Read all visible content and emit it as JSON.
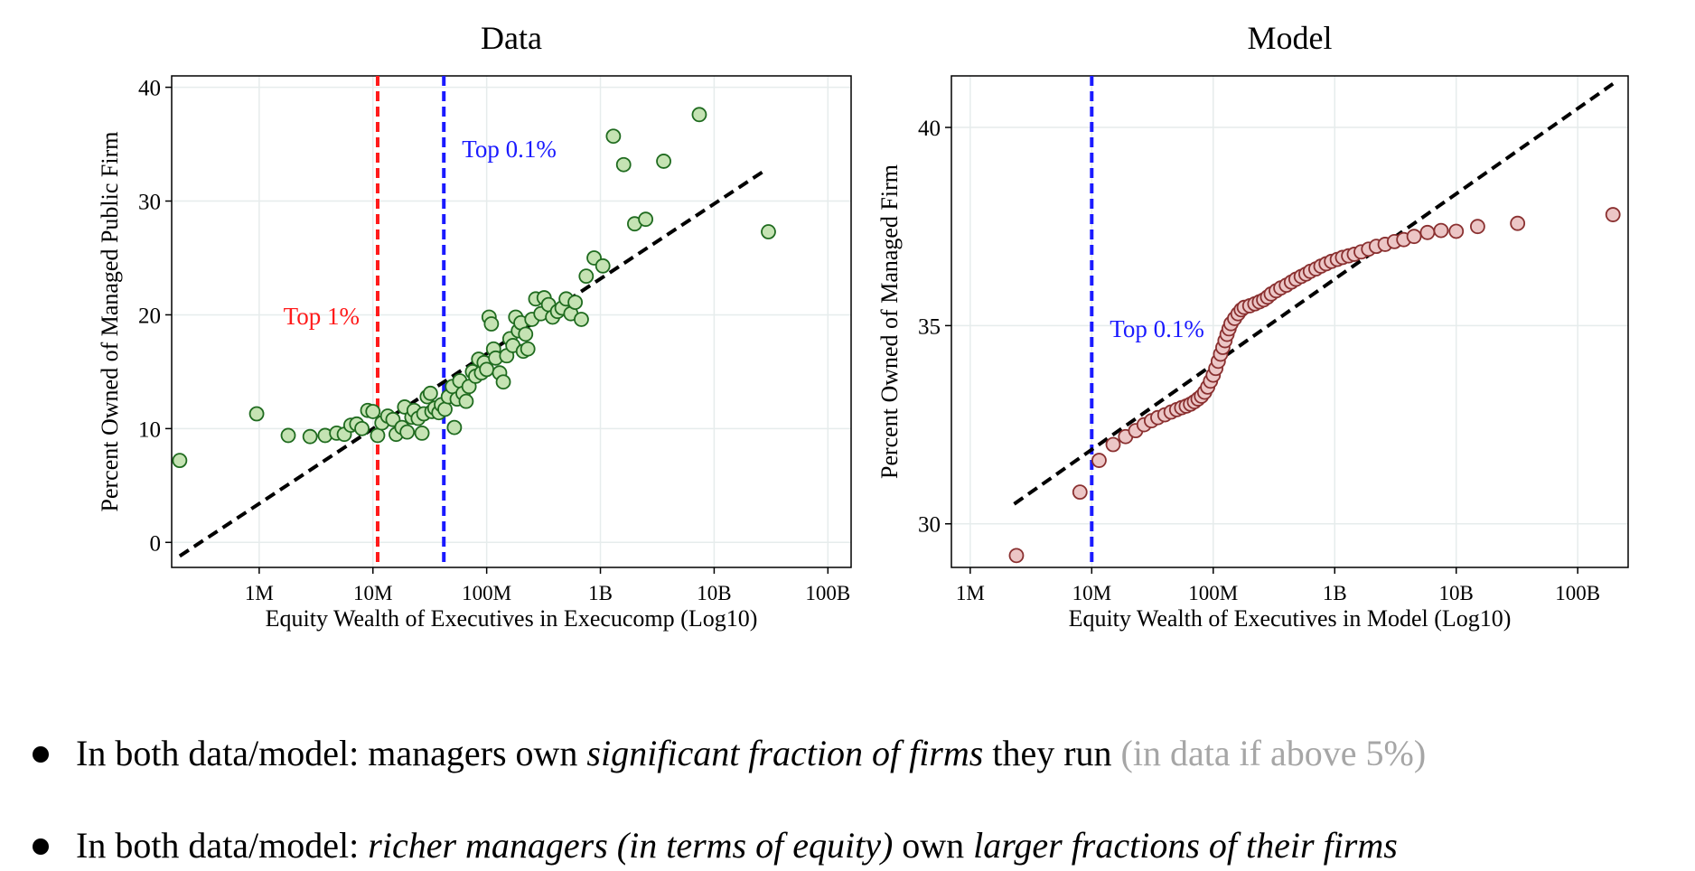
{
  "chart_data": [
    {
      "type": "scatter",
      "title": "Data",
      "xlabel": "Equity Wealth of Executives in Execucomp (Log10)",
      "ylabel": "Percent Owned of Managed Public Firm",
      "x_scale": "log10",
      "xlim": [
        170000.0,
        160000000000.0
      ],
      "ylim": [
        -2.2,
        41
      ],
      "xticks": [
        1000000,
        10000000,
        100000000,
        1000000000,
        10000000000,
        100000000000
      ],
      "xtick_labels": [
        "1M",
        "10M",
        "100M",
        "1B",
        "10B",
        "100B"
      ],
      "yticks": [
        0,
        10,
        20,
        30,
        40
      ],
      "ytick_labels": [
        "0",
        "10",
        "20",
        "30",
        "40"
      ],
      "grid": true,
      "marker_fill": "#c5e3b3",
      "marker_stroke": "#1f6b1f",
      "points": [
        [
          200000.0,
          7.2
        ],
        [
          950000.0,
          11.3
        ],
        [
          1800000.0,
          9.4
        ],
        [
          2800000.0,
          9.3
        ],
        [
          3800000.0,
          9.4
        ],
        [
          4800000.0,
          9.6
        ],
        [
          5600000.0,
          9.5
        ],
        [
          6400000.0,
          10.3
        ],
        [
          7200000.0,
          10.4
        ],
        [
          8000000.0,
          10.0
        ],
        [
          9000000.0,
          11.6
        ],
        [
          10000000.0,
          11.5
        ],
        [
          11000000.0,
          9.4
        ],
        [
          12000000.0,
          10.5
        ],
        [
          13500000.0,
          11.1
        ],
        [
          15000000.0,
          10.8
        ],
        [
          16000000.0,
          9.5
        ],
        [
          18000000.0,
          10.1
        ],
        [
          19000000.0,
          11.9
        ],
        [
          20000000.0,
          9.7
        ],
        [
          22000000.0,
          11.0
        ],
        [
          23000000.0,
          11.6
        ],
        [
          25000000.0,
          10.9
        ],
        [
          27000000.0,
          9.6
        ],
        [
          28000000.0,
          11.3
        ],
        [
          30000000.0,
          12.8
        ],
        [
          32000000.0,
          13.1
        ],
        [
          33000000.0,
          11.5
        ],
        [
          35000000.0,
          11.8
        ],
        [
          38000000.0,
          11.4
        ],
        [
          40000000.0,
          12.1
        ],
        [
          43000000.0,
          11.7
        ],
        [
          46000000.0,
          12.8
        ],
        [
          50000000.0,
          13.7
        ],
        [
          52000000.0,
          10.1
        ],
        [
          55000000.0,
          12.6
        ],
        [
          58000000.0,
          14.2
        ],
        [
          62000000.0,
          13.1
        ],
        [
          66000000.0,
          12.4
        ],
        [
          70000000.0,
          13.7
        ],
        [
          75000000.0,
          15.0
        ],
        [
          80000000.0,
          14.6
        ],
        [
          85000000.0,
          16.1
        ],
        [
          90000000.0,
          14.9
        ],
        [
          95000000.0,
          15.8
        ],
        [
          100000000.0,
          15.2
        ],
        [
          105000000.0,
          19.8
        ],
        [
          110000000.0,
          19.2
        ],
        [
          115000000.0,
          17.0
        ],
        [
          120000000.0,
          16.2
        ],
        [
          130000000.0,
          14.9
        ],
        [
          140000000.0,
          14.1
        ],
        [
          150000000.0,
          16.4
        ],
        [
          160000000.0,
          17.9
        ],
        [
          170000000.0,
          17.3
        ],
        [
          180000000.0,
          19.8
        ],
        [
          190000000.0,
          18.6
        ],
        [
          200000000.0,
          19.3
        ],
        [
          210000000.0,
          16.8
        ],
        [
          220000000.0,
          18.3
        ],
        [
          230000000.0,
          17.0
        ],
        [
          250000000.0,
          19.6
        ],
        [
          270000000.0,
          21.4
        ],
        [
          300000000.0,
          20.1
        ],
        [
          320000000.0,
          21.5
        ],
        [
          350000000.0,
          20.9
        ],
        [
          380000000.0,
          19.8
        ],
        [
          420000000.0,
          20.3
        ],
        [
          460000000.0,
          20.6
        ],
        [
          500000000.0,
          21.4
        ],
        [
          550000000.0,
          20.1
        ],
        [
          600000000.0,
          21.1
        ],
        [
          680000000.0,
          19.6
        ],
        [
          750000000.0,
          23.4
        ],
        [
          880000000.0,
          25.0
        ],
        [
          1050000000.0,
          24.3
        ],
        [
          1300000000.0,
          35.7
        ],
        [
          1600000000.0,
          33.2
        ],
        [
          2000000000.0,
          28.0
        ],
        [
          2500000000.0,
          28.4
        ],
        [
          3600000000.0,
          33.5
        ],
        [
          7400000000.0,
          37.6
        ],
        [
          30000000000.0,
          27.3
        ]
      ],
      "fit_line": [
        [
          200000.0,
          -1.2
        ],
        [
          29000000000.0,
          32.8
        ]
      ],
      "vlines": [
        {
          "x": 11000000,
          "color": "#ff1a1a",
          "label": "Top 1%",
          "label_y": 19.8
        },
        {
          "x": 42000000,
          "color": "#1a1aff",
          "label": "Top 0.1%",
          "label_y": 34.5
        }
      ]
    },
    {
      "type": "scatter",
      "title": "Model",
      "xlabel": "Equity Wealth of Executives in Model (Log10)",
      "ylabel": "Percent Owned of Managed Firm",
      "x_scale": "log10",
      "xlim": [
        700000.0,
        260000000000.0
      ],
      "ylim": [
        28.9,
        41.3
      ],
      "xticks": [
        1000000,
        10000000,
        100000000,
        1000000000,
        10000000000,
        100000000000
      ],
      "xtick_labels": [
        "1M",
        "10M",
        "100M",
        "1B",
        "10B",
        "100B"
      ],
      "yticks": [
        30,
        35,
        40
      ],
      "ytick_labels": [
        "30",
        "35",
        "40"
      ],
      "grid": true,
      "marker_fill": "#ecc6c6",
      "marker_stroke": "#8a3030",
      "points": [
        [
          2400000.0,
          29.2
        ],
        [
          8000000.0,
          30.8
        ],
        [
          11500000.0,
          31.6
        ],
        [
          15000000.0,
          32.0
        ],
        [
          19000000.0,
          32.2
        ],
        [
          23000000.0,
          32.35
        ],
        [
          27000000.0,
          32.5
        ],
        [
          31000000.0,
          32.6
        ],
        [
          35000000.0,
          32.68
        ],
        [
          40000000.0,
          32.75
        ],
        [
          45000000.0,
          32.82
        ],
        [
          50000000.0,
          32.88
        ],
        [
          55000000.0,
          32.93
        ],
        [
          60000000.0,
          32.97
        ],
        [
          65000000.0,
          33.02
        ],
        [
          70000000.0,
          33.08
        ],
        [
          75000000.0,
          33.15
        ],
        [
          80000000.0,
          33.22
        ],
        [
          85000000.0,
          33.32
        ],
        [
          90000000.0,
          33.45
        ],
        [
          95000000.0,
          33.6
        ],
        [
          100000000.0,
          33.75
        ],
        [
          105000000.0,
          33.92
        ],
        [
          110000000.0,
          34.1
        ],
        [
          115000000.0,
          34.28
        ],
        [
          120000000.0,
          34.45
        ],
        [
          125000000.0,
          34.62
        ],
        [
          130000000.0,
          34.78
        ],
        [
          135000000.0,
          34.92
        ],
        [
          140000000.0,
          35.05
        ],
        [
          150000000.0,
          35.18
        ],
        [
          160000000.0,
          35.3
        ],
        [
          170000000.0,
          35.4
        ],
        [
          180000000.0,
          35.46
        ],
        [
          200000000.0,
          35.5
        ],
        [
          220000000.0,
          35.55
        ],
        [
          240000000.0,
          35.6
        ],
        [
          260000000.0,
          35.65
        ],
        [
          280000000.0,
          35.72
        ],
        [
          300000000.0,
          35.8
        ],
        [
          330000000.0,
          35.88
        ],
        [
          360000000.0,
          35.95
        ],
        [
          400000000.0,
          36.02
        ],
        [
          440000000.0,
          36.1
        ],
        [
          480000000.0,
          36.17
        ],
        [
          530000000.0,
          36.24
        ],
        [
          580000000.0,
          36.3
        ],
        [
          630000000.0,
          36.37
        ],
        [
          700000000.0,
          36.43
        ],
        [
          770000000.0,
          36.5
        ],
        [
          850000000.0,
          36.56
        ],
        [
          940000000.0,
          36.62
        ],
        [
          1050000000.0,
          36.67
        ],
        [
          1160000000.0,
          36.72
        ],
        [
          1300000000.0,
          36.76
        ],
        [
          1450000000.0,
          36.8
        ],
        [
          1650000000.0,
          36.86
        ],
        [
          1900000000.0,
          36.93
        ],
        [
          2200000000.0,
          37.0
        ],
        [
          2600000000.0,
          37.05
        ],
        [
          3100000000.0,
          37.12
        ],
        [
          3700000000.0,
          37.17
        ],
        [
          4500000000.0,
          37.25
        ],
        [
          5800000000.0,
          37.35
        ],
        [
          7500000000.0,
          37.4
        ],
        [
          10000000000.0,
          37.38
        ],
        [
          15000000000.0,
          37.5
        ],
        [
          32000000000.0,
          37.58
        ],
        [
          195000000000.0,
          37.8
        ]
      ],
      "fit_line": [
        [
          2300000.0,
          30.5
        ],
        [
          195000000000.0,
          41.1
        ]
      ],
      "vlines": [
        {
          "x": 10000000,
          "color": "#1a1aff",
          "label": "Top 0.1%",
          "label_y": 34.9
        }
      ]
    }
  ],
  "bullets": [
    {
      "p1": "In both data/model: managers own ",
      "e1": "significant fraction of firms",
      "p2": " they run ",
      "grey": "(in data if above 5%)"
    },
    {
      "p1": "In both data/model: ",
      "e1": "richer managers (in terms of equity)",
      "p2": " own ",
      "e2": "larger fractions of their firms"
    }
  ]
}
